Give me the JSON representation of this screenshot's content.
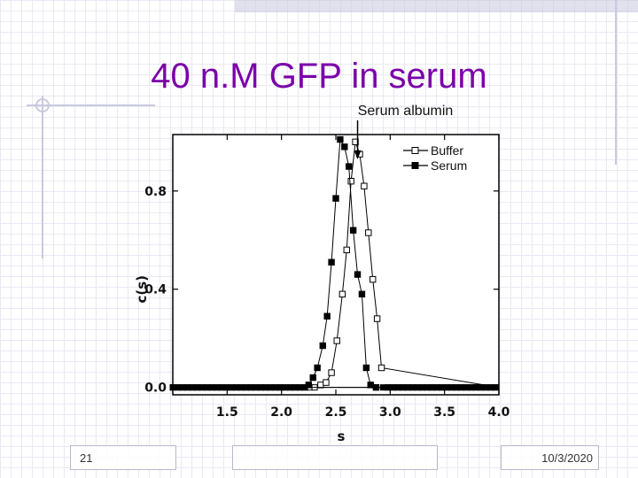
{
  "slide": {
    "title": "40 n.M GFP in serum",
    "page_number": "21",
    "date": "10/3/2020"
  },
  "colors": {
    "title": "#7a00a8",
    "series": "#000000",
    "background_grid": "#e9e9f4"
  },
  "chart_data": {
    "type": "scatter",
    "xlabel": "s",
    "ylabel": "c(s)",
    "xlim": [
      1.0,
      4.0
    ],
    "ylim": [
      -0.03,
      1.03
    ],
    "xticks": [
      1.5,
      2.0,
      2.5,
      3.0,
      3.5,
      4.0
    ],
    "xtick_labels": [
      "1.5",
      "2.0",
      "2.5",
      "3.0",
      "3.5",
      "4.0"
    ],
    "yticks": [
      0.0,
      0.4,
      0.8
    ],
    "ytick_labels": [
      "0.0",
      "0.4",
      "0.8"
    ],
    "legend_position": "top-right",
    "annotation": {
      "text": "Serum albumin",
      "x": 2.7,
      "y": 0.98
    },
    "series": [
      {
        "name": "Buffer",
        "marker": "open-square",
        "x": [
          2.36,
          2.41,
          2.46,
          2.51,
          2.56,
          2.6,
          2.64,
          2.68,
          2.72,
          2.76,
          2.8,
          2.84,
          2.88,
          2.92
        ],
        "y": [
          0.01,
          0.02,
          0.06,
          0.19,
          0.38,
          0.56,
          0.84,
          1.0,
          0.95,
          0.82,
          0.63,
          0.44,
          0.28,
          0.08
        ]
      },
      {
        "name": "Serum",
        "marker": "filled-square",
        "x": [
          2.25,
          2.29,
          2.33,
          2.38,
          2.42,
          2.46,
          2.5,
          2.54,
          2.58,
          2.62,
          2.66,
          2.7,
          2.74,
          2.78,
          2.82,
          2.87
        ],
        "y": [
          0.01,
          0.04,
          0.08,
          0.17,
          0.29,
          0.51,
          0.77,
          1.01,
          0.98,
          0.9,
          0.64,
          0.46,
          0.38,
          0.08,
          0.01,
          0.0
        ]
      }
    ]
  }
}
